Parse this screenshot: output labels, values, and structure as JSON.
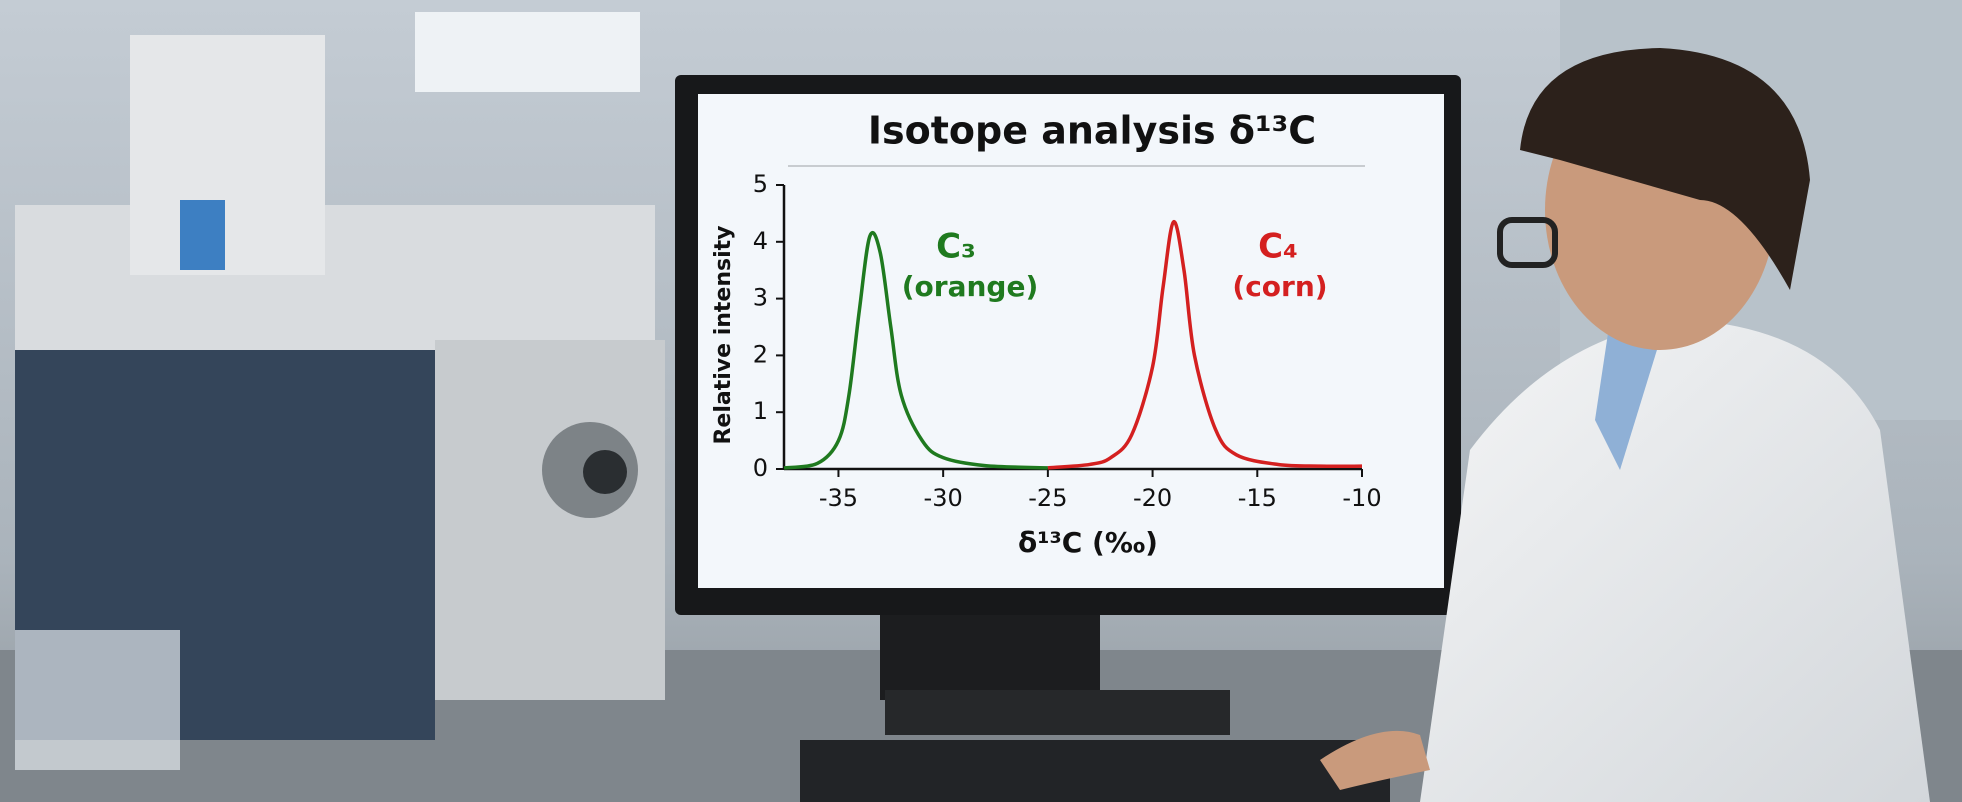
{
  "chart_data": {
    "type": "line",
    "title": "Isotope analysis δ¹³C",
    "x_label": "δ¹³C (‰)",
    "y_label": "Relative intensity",
    "xlim": [
      -37.6,
      -10
    ],
    "xticks": [
      -35,
      -30,
      -25,
      -20,
      -15,
      -10
    ],
    "ylim": [
      0,
      5
    ],
    "yticks": [
      0,
      1,
      2,
      3,
      4,
      5
    ],
    "series": [
      {
        "name": "C₃ (orange)",
        "color": "#1f7a1f",
        "x": [
          -37.6,
          -36,
          -35,
          -34.5,
          -34,
          -33.5,
          -33,
          -32.5,
          -32,
          -31,
          -30,
          -28,
          -25
        ],
        "values": [
          0.02,
          0.1,
          0.5,
          1.3,
          2.8,
          4.1,
          3.8,
          2.5,
          1.3,
          0.5,
          0.2,
          0.06,
          0.02
        ]
      },
      {
        "name": "C₄ (corn)",
        "color": "#d42020",
        "x": [
          -25,
          -23,
          -22,
          -21,
          -20,
          -19.5,
          -19,
          -18.5,
          -18,
          -17,
          -16,
          -14,
          -12,
          -10
        ],
        "values": [
          0.02,
          0.08,
          0.2,
          0.6,
          1.8,
          3.2,
          4.35,
          3.5,
          2.0,
          0.7,
          0.25,
          0.08,
          0.05,
          0.05
        ]
      }
    ],
    "annotations": [
      {
        "text": "C₃",
        "color": "#1f7a1f"
      },
      {
        "text": "(orange)",
        "color": "#1f7a1f"
      },
      {
        "text": "C₄",
        "color": "#d42020"
      },
      {
        "text": "(corn)",
        "color": "#d42020"
      }
    ]
  }
}
